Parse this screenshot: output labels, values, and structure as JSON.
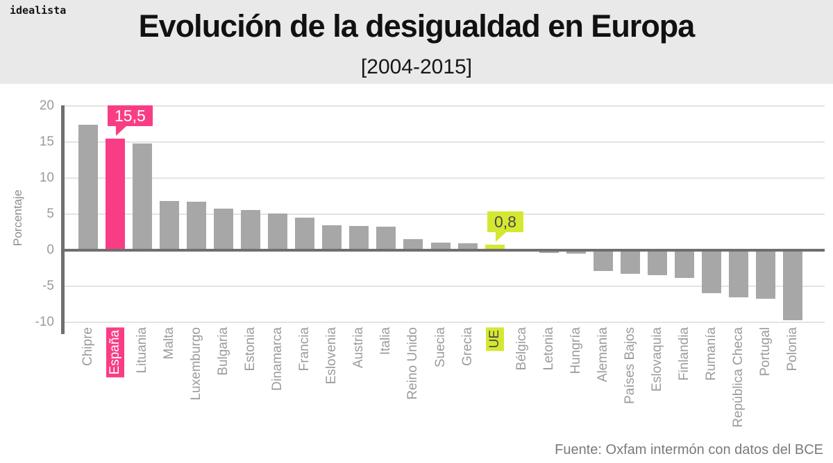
{
  "brand": {
    "logo_text": "idealista"
  },
  "header": {
    "title": "Evolución de la desigualdad en Europa",
    "subtitle": "[2004-2015]"
  },
  "chart_data": {
    "type": "bar",
    "title": "Evolución de la desigualdad en Europa",
    "subtitle": "[2004-2015]",
    "xlabel": "",
    "ylabel": "Porcentaje",
    "ylim": [
      -10,
      20
    ],
    "yticks": [
      20,
      15,
      10,
      5,
      0,
      -5,
      -10
    ],
    "grid": true,
    "legend": "none",
    "categories": [
      "Chipre",
      "España",
      "Lituania",
      "Malta",
      "Luxemburgo",
      "Bulgaria",
      "Estonia",
      "Dinamarca",
      "Francia",
      "Eslovenia",
      "Austria",
      "Italia",
      "Reino Unido",
      "Suecia",
      "Grecia",
      "UE",
      "Bélgica",
      "Letonia",
      "Hungría",
      "Alemania",
      "Países Bajos",
      "Eslovaquia",
      "Finlandia",
      "Rumanía",
      "República Checa",
      "Portugal",
      "Polonia"
    ],
    "values": [
      17.4,
      15.5,
      14.8,
      6.8,
      6.7,
      5.8,
      5.6,
      5.1,
      4.5,
      3.5,
      3.4,
      3.3,
      1.5,
      1.1,
      1.0,
      0.8,
      -0.1,
      -0.4,
      -0.5,
      -2.9,
      -3.3,
      -3.5,
      -3.8,
      -6.0,
      -6.5,
      -6.7,
      -9.7
    ],
    "bar_color": "#a7a7a7",
    "highlights": [
      {
        "index": 1,
        "category": "España",
        "label": "15,5",
        "color": "#f93d85",
        "label_text_color": "#ffffff"
      },
      {
        "index": 15,
        "category": "UE",
        "label": "0,8",
        "color": "#d4e831",
        "label_text_color": "#4a4a4a"
      }
    ]
  },
  "footer": {
    "source": "Fuente: Oxfam intermón con datos del BCE"
  },
  "colors": {
    "header_bg": "#e9e9e9",
    "title_text": "#111111",
    "bar_gray": "#a7a7a7",
    "highlight_pink": "#f93d85",
    "highlight_green": "#d4e831",
    "axis_line": "#6f6f6f",
    "gridline": "#e3e3e3",
    "tick_text": "#9b9b9b",
    "source_text": "#7a7a7a"
  }
}
